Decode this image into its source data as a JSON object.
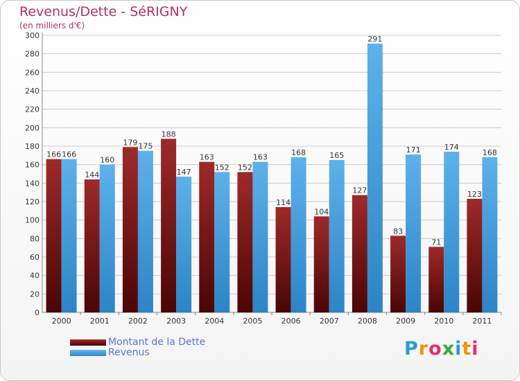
{
  "header": {
    "title": "Revenus/Dette - SéRIGNY",
    "subtitle": "(en milliers d'€)"
  },
  "logo": {
    "letters": [
      {
        "ch": "P",
        "color": "#2a9bd6"
      },
      {
        "ch": "r",
        "color": "#f29400"
      },
      {
        "ch": "o",
        "color": "#e1306c"
      },
      {
        "ch": "x",
        "color": "#3aa935"
      },
      {
        "ch": "i",
        "color": "#2a9bd6"
      },
      {
        "ch": "t",
        "color": "#f29400"
      },
      {
        "ch": "i",
        "color": "#e1306c"
      }
    ]
  },
  "colors": {
    "dette": "#8b1a1a",
    "revenus": "#4aa3e0",
    "grid": "#cccccc",
    "label": "#333333"
  },
  "chart_data": {
    "type": "bar",
    "categories": [
      "2000",
      "2001",
      "2002",
      "2003",
      "2004",
      "2005",
      "2006",
      "2007",
      "2008",
      "2009",
      "2010",
      "2011"
    ],
    "series": [
      {
        "name": "Montant de la Dette",
        "values": [
          166,
          144,
          179,
          188,
          163,
          152,
          114,
          104,
          127,
          83,
          71,
          123
        ]
      },
      {
        "name": "Revenus",
        "values": [
          166,
          160,
          175,
          147,
          152,
          163,
          168,
          165,
          291,
          171,
          174,
          168
        ]
      }
    ],
    "yticks": [
      0,
      20,
      40,
      60,
      80,
      100,
      120,
      140,
      160,
      180,
      200,
      220,
      240,
      260,
      280,
      300
    ],
    "ylim": [
      0,
      300
    ],
    "grid": true,
    "legend_position": "bottom-left"
  }
}
